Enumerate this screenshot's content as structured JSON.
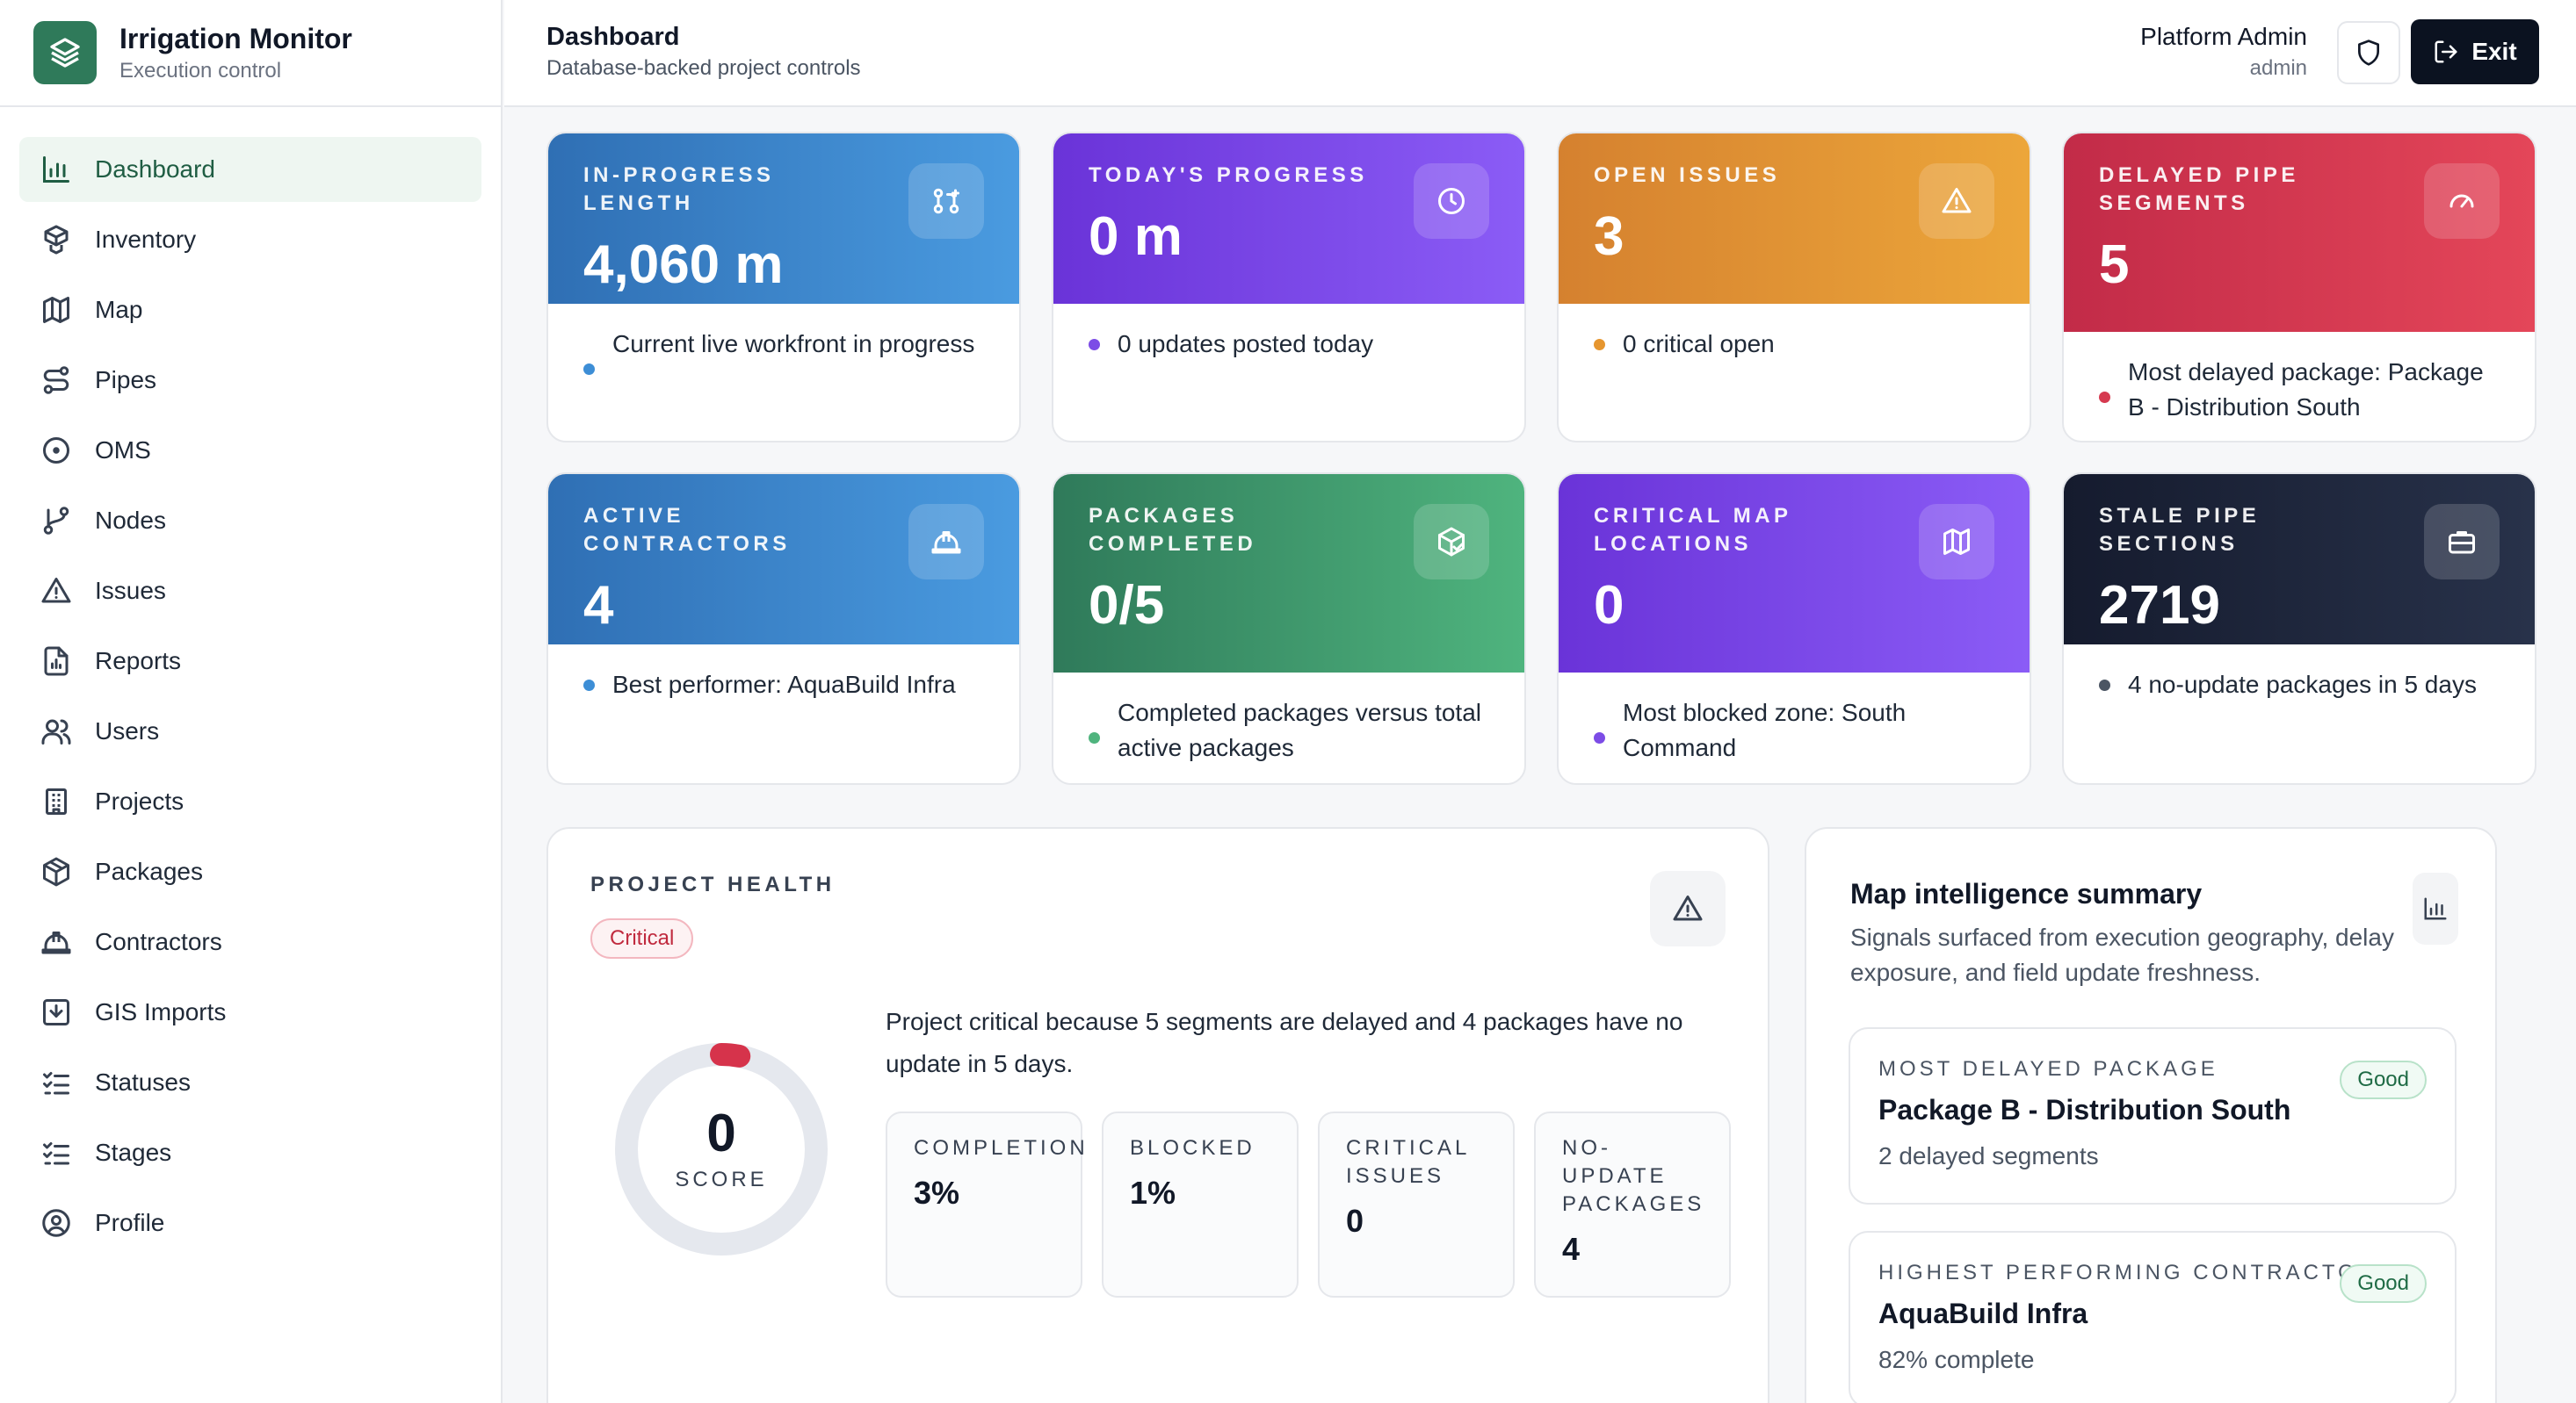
{
  "brand": {
    "title": "Irrigation Monitor",
    "subtitle": "Execution control"
  },
  "nav": [
    {
      "label": "Dashboard",
      "icon": "bar-chart-icon",
      "active": true
    },
    {
      "label": "Inventory",
      "icon": "boxes-icon"
    },
    {
      "label": "Map",
      "icon": "map-icon"
    },
    {
      "label": "Pipes",
      "icon": "route-icon"
    },
    {
      "label": "OMS",
      "icon": "target-icon"
    },
    {
      "label": "Nodes",
      "icon": "git-branch-icon"
    },
    {
      "label": "Issues",
      "icon": "alert-triangle-icon"
    },
    {
      "label": "Reports",
      "icon": "file-chart-icon"
    },
    {
      "label": "Users",
      "icon": "users-icon"
    },
    {
      "label": "Projects",
      "icon": "building-icon"
    },
    {
      "label": "Packages",
      "icon": "package-icon"
    },
    {
      "label": "Contractors",
      "icon": "hard-hat-icon"
    },
    {
      "label": "GIS Imports",
      "icon": "download-icon"
    },
    {
      "label": "Statuses",
      "icon": "list-checks-icon"
    },
    {
      "label": "Stages",
      "icon": "list-checks-icon"
    },
    {
      "label": "Profile",
      "icon": "user-circle-icon"
    }
  ],
  "header": {
    "title": "Dashboard",
    "subtitle": "Database-backed project controls",
    "user_name": "Platform Admin",
    "user_role": "admin",
    "exit_label": "Exit"
  },
  "kpis": [
    {
      "label": "In-progress length",
      "value": "4,060 m",
      "footer": "Current live workfront in progress",
      "icon": "git-pull-request-icon",
      "color": "#4a9be0"
    },
    {
      "label": "Today's progress",
      "value": "0 m",
      "footer": "0 updates posted today",
      "icon": "clock-icon",
      "color": "#7c4ce6"
    },
    {
      "label": "Open issues",
      "value": "3",
      "footer": "0 critical open",
      "icon": "alert-triangle-icon",
      "color": "#e6962f"
    },
    {
      "label": "Delayed pipe segments",
      "value": "5",
      "footer": "Most delayed package: Package B - Distribution South",
      "icon": "gauge-icon",
      "color": "#d63a50"
    },
    {
      "label": "Active contractors",
      "value": "4",
      "footer": "Best performer: AquaBuild Infra",
      "icon": "hard-hat-icon",
      "color": "#4a9be0"
    },
    {
      "label": "Packages completed",
      "value": "0/5",
      "footer": "Completed packages versus total active packages",
      "icon": "package-check-icon",
      "color": "#4fb47e"
    },
    {
      "label": "Critical map locations",
      "value": "0",
      "footer": "Most blocked zone: South Command",
      "icon": "map-icon",
      "color": "#7c4ce6"
    },
    {
      "label": "Stale pipe sections",
      "value": "2719",
      "footer": "4 no-update packages in 5 days",
      "icon": "briefcase-icon",
      "color": "#4b5563"
    }
  ],
  "health": {
    "label": "PROJECT HEALTH",
    "status": "Critical",
    "score": "0",
    "score_label": "SCORE",
    "score_fraction": 0.03,
    "description": "Project critical because 5 segments are delayed and 4 packages have no update in 5 days.",
    "stats": [
      {
        "label": "Completion",
        "value": "3%"
      },
      {
        "label": "Blocked",
        "value": "1%"
      },
      {
        "label": "Critical issues",
        "value": "0"
      },
      {
        "label": "No-update packages",
        "value": "4"
      }
    ]
  },
  "map_intel": {
    "title": "Map intelligence summary",
    "subtitle": "Signals surfaced from execution geography, delay exposure, and field update freshness.",
    "cards": [
      {
        "label": "Most delayed package",
        "title": "Package B - Distribution South",
        "sub": "2 delayed segments",
        "badge": "Good"
      },
      {
        "label": "Highest performing contractor",
        "title": "AquaBuild Infra",
        "sub": "82% complete",
        "badge": "Good"
      }
    ]
  }
}
